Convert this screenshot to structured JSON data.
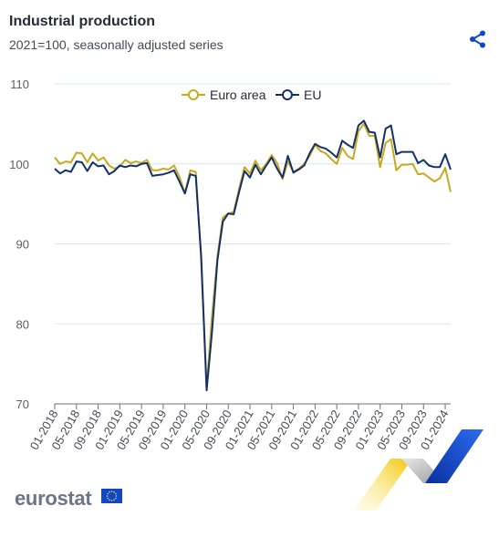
{
  "header": {
    "title": "Industrial production",
    "subtitle": "2021=100, seasonally adjusted series"
  },
  "brand": {
    "logo_text": "eurostat",
    "share_icon": "share-icon"
  },
  "colors": {
    "euro_area": "#c8a91e",
    "eu": "#14306b",
    "grid": "#d6e9ea",
    "axis": "#6b7280"
  },
  "chart_data": {
    "type": "line",
    "title": "Industrial production",
    "subtitle": "2021=100, seasonally adjusted series",
    "xlabel": "",
    "ylabel": "",
    "ylim": [
      70,
      110
    ],
    "yticks": [
      70,
      80,
      90,
      100,
      110
    ],
    "grid": true,
    "legend_position": "top-center",
    "x_start": "01-2018",
    "x_ticks": [
      "01-2018",
      "05-2018",
      "09-2018",
      "01-2019",
      "05-2019",
      "09-2019",
      "01-2020",
      "05-2020",
      "09-2020",
      "01-2021",
      "05-2021",
      "09-2021",
      "01-2022",
      "05-2022",
      "09-2022",
      "01-2023",
      "05-2023",
      "09-2023",
      "01-2024"
    ],
    "series": [
      {
        "name": "Euro area",
        "color": "#c8a91e",
        "values": [
          100.8,
          100.0,
          100.3,
          100.2,
          101.4,
          101.3,
          100.2,
          101.3,
          100.4,
          100.8,
          99.8,
          99.4,
          99.7,
          100.5,
          100.1,
          100.3,
          100.1,
          100.5,
          99.2,
          99.2,
          99.4,
          99.3,
          99.8,
          98.4,
          96.3,
          99.2,
          99.0,
          88.0,
          72.0,
          81.0,
          88.5,
          93.3,
          93.8,
          94.0,
          96.9,
          99.6,
          98.8,
          100.4,
          99.2,
          100.0,
          101.1,
          100.1,
          98.1,
          100.3,
          99.0,
          99.4,
          100.0,
          101.0,
          102.4,
          101.6,
          101.3,
          100.6,
          100.0,
          102.0,
          101.0,
          100.6,
          104.1,
          105.0,
          103.5,
          103.5,
          99.6,
          102.6,
          103.1,
          99.2,
          99.9,
          99.9,
          100.0,
          98.7,
          98.8,
          98.3,
          97.8,
          98.2,
          99.5,
          96.5
        ]
      },
      {
        "name": "EU",
        "color": "#14306b",
        "values": [
          99.4,
          98.8,
          99.2,
          99.0,
          100.3,
          100.2,
          99.1,
          100.2,
          99.7,
          99.8,
          98.7,
          99.1,
          99.8,
          99.6,
          99.8,
          99.7,
          100.0,
          100.1,
          98.5,
          98.6,
          98.7,
          98.9,
          99.2,
          97.8,
          96.3,
          98.7,
          98.5,
          88.5,
          71.7,
          79.0,
          88.0,
          92.8,
          93.8,
          93.7,
          96.5,
          99.1,
          98.3,
          99.9,
          98.7,
          99.8,
          100.8,
          99.4,
          98.3,
          101.0,
          98.9,
          99.3,
          99.8,
          101.3,
          102.5,
          102.1,
          101.9,
          101.4,
          100.8,
          102.9,
          102.4,
          102.0,
          104.8,
          105.4,
          104.0,
          103.9,
          100.8,
          104.4,
          104.8,
          101.2,
          101.5,
          101.5,
          101.5,
          100.1,
          100.5,
          99.8,
          99.6,
          99.6,
          101.2,
          99.3
        ]
      }
    ]
  }
}
